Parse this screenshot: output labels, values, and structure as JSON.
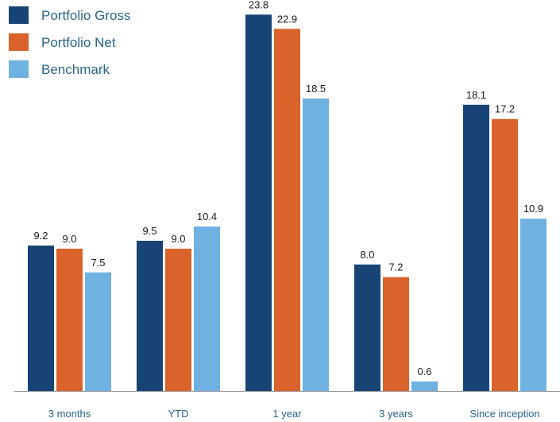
{
  "chart_data": {
    "type": "bar",
    "categories": [
      "3 months",
      "YTD",
      "1 year",
      "3 years",
      "Since inception"
    ],
    "series": [
      {
        "name": "Portfolio Gross",
        "values": [
          9.2,
          9.5,
          23.8,
          8.0,
          18.1
        ],
        "color": "#174475"
      },
      {
        "name": "Portfolio Net",
        "values": [
          9.0,
          9.0,
          22.9,
          7.2,
          17.2
        ],
        "color": "#d9632a"
      },
      {
        "name": "Benchmark",
        "values": [
          7.5,
          10.4,
          18.5,
          0.6,
          10.9
        ],
        "color": "#6fb2e2"
      }
    ],
    "value_labels": [
      [
        "9.2",
        "9.5",
        "23.8",
        "8.0",
        "18.1"
      ],
      [
        "9.0",
        "9.0",
        "22.9",
        "7.2",
        "17.2"
      ],
      [
        "7.5",
        "10.4",
        "18.5",
        "0.6",
        "10.9"
      ]
    ],
    "ylim": [
      0,
      25
    ],
    "grid": false,
    "legend_position": "top-left",
    "legend_text_color": "#2a6489",
    "category_label_color": "#2a6489",
    "axis_color": "#9a9a9a"
  }
}
